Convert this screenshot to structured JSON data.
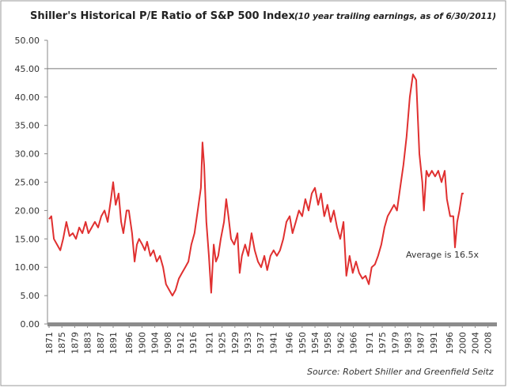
{
  "chart_data": {
    "type": "line",
    "title": "Shiller's Historical P/E Ratio of S&P 500 Index",
    "subtitle": "(10 year trailing earnings, as of 6/30/2011)",
    "source": "Source:  Robert Shiller and Greenfield Seitz",
    "annotation": "Average is 16.5x",
    "hline": 45,
    "xlim": [
      1870.5,
      2010.8
    ],
    "xticks": [
      1871,
      1875,
      1879,
      1883,
      1887,
      1891,
      1896,
      1900,
      1904,
      1908,
      1912,
      1916,
      1921,
      1925,
      1929,
      1933,
      1937,
      1941,
      1946,
      1950,
      1954,
      1958,
      1962,
      1966,
      1971,
      1975,
      1979,
      1983,
      1987,
      1991,
      1996,
      2000,
      2004,
      2008
    ],
    "ylim": [
      0,
      50
    ],
    "yticks": [
      {
        "value": 0,
        "label": "0.00"
      },
      {
        "value": 5,
        "label": "5.00"
      },
      {
        "value": 10,
        "label": "10.00"
      },
      {
        "value": 15,
        "label": "15.00"
      },
      {
        "value": 20,
        "label": "20.00"
      },
      {
        "value": 25,
        "label": "25.00"
      },
      {
        "value": 30,
        "label": "30.00"
      },
      {
        "value": 35,
        "label": "35.00"
      },
      {
        "value": 40,
        "label": "40.00"
      },
      {
        "value": 45,
        "label": "45.00"
      },
      {
        "value": 50,
        "label": "50.00"
      }
    ],
    "series": [
      {
        "color": "#e03030",
        "x": [
          1871.0,
          1871.7,
          1872.5,
          1873.5,
          1874.5,
          1875.4,
          1876.4,
          1877.4,
          1878.4,
          1879.4,
          1880.4,
          1881.4,
          1882.4,
          1883.3,
          1884.3,
          1885.3,
          1886.3,
          1887.3,
          1888.3,
          1889.3,
          1890.3,
          1891.0,
          1891.8,
          1892.7,
          1893.5,
          1894.2,
          1895.2,
          1895.9,
          1896.9,
          1897.7,
          1898.4,
          1899.1,
          1900.1,
          1900.9,
          1901.6,
          1902.6,
          1903.6,
          1904.6,
          1905.6,
          1906.6,
          1907.5,
          1908.5,
          1909.5,
          1910.5,
          1911.5,
          1912.5,
          1913.5,
          1914.5,
          1915.4,
          1916.4,
          1917.4,
          1918.4,
          1918.9,
          1919.4,
          1920.1,
          1920.9,
          1921.6,
          1922.4,
          1923.1,
          1923.8,
          1924.6,
          1925.6,
          1926.3,
          1927.0,
          1927.8,
          1928.8,
          1929.8,
          1930.5,
          1931.2,
          1932.2,
          1933.2,
          1934.2,
          1935.2,
          1936.2,
          1937.2,
          1938.2,
          1939.1,
          1940.1,
          1941.1,
          1942.1,
          1943.1,
          1944.1,
          1945.1,
          1946.1,
          1947.0,
          1948.0,
          1949.0,
          1950.0,
          1951.0,
          1952.0,
          1953.0,
          1954.0,
          1955.0,
          1955.9,
          1956.9,
          1957.9,
          1958.9,
          1959.9,
          1960.9,
          1961.9,
          1962.9,
          1963.8,
          1964.8,
          1965.8,
          1966.8,
          1967.8,
          1968.8,
          1969.8,
          1970.8,
          1971.7,
          1972.7,
          1973.7,
          1974.7,
          1975.7,
          1976.7,
          1977.7,
          1978.7,
          1979.6,
          1980.6,
          1981.6,
          1982.6,
          1983.6,
          1984.6,
          1985.6,
          1986.6,
          1987.5,
          1988.0,
          1988.8,
          1989.5,
          1990.5,
          1991.5,
          1992.5,
          1993.5,
          1994.5,
          1995.2,
          1996.2,
          1997.2,
          1997.7,
          1998.4,
          1999.1,
          1999.9,
          2000.4
        ],
        "values": [
          18.5,
          19,
          15,
          14,
          13,
          15,
          18,
          15.5,
          16,
          15,
          17,
          16,
          18,
          16,
          17,
          18,
          17,
          19,
          20,
          18,
          22,
          25,
          21,
          23,
          18,
          16,
          20,
          20,
          16,
          11,
          14,
          15,
          14,
          13,
          14.5,
          12,
          13,
          11,
          12,
          10,
          7,
          6,
          5,
          6,
          8,
          9,
          10,
          11,
          14,
          16,
          20,
          24,
          32,
          28,
          18,
          12,
          5.5,
          14,
          11,
          12,
          15,
          18,
          22,
          19,
          15,
          14,
          16,
          9,
          12,
          14,
          12,
          16,
          13,
          11,
          10,
          12,
          9.5,
          12,
          13,
          12,
          13,
          15,
          18,
          19,
          16,
          18,
          20,
          19,
          22,
          20,
          23,
          24,
          21,
          23,
          19,
          21,
          18,
          20,
          17,
          15,
          18,
          8.5,
          12,
          9,
          11,
          9,
          8,
          8.5,
          7,
          10,
          10.5,
          12,
          14,
          17,
          19,
          20,
          21,
          20,
          24,
          28,
          33,
          40,
          44,
          43,
          30,
          25,
          20,
          27,
          26,
          27,
          26,
          27,
          25,
          27,
          22,
          19,
          19,
          13.5,
          18,
          20,
          23,
          23
        ]
      }
    ]
  }
}
